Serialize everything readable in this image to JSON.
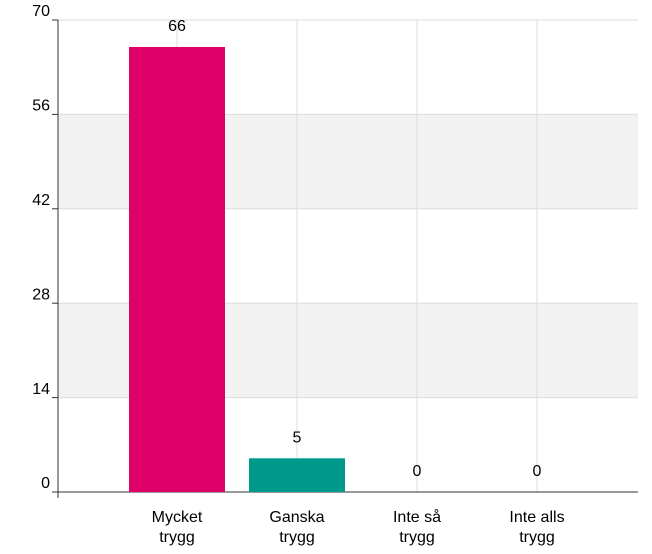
{
  "chart_data": {
    "type": "bar",
    "categories": [
      "Mycket trygg",
      "Ganska trygg",
      "Inte så trygg",
      "Inte alls trygg"
    ],
    "values": [
      66,
      5,
      0,
      0
    ],
    "colors": [
      "#e0006a",
      "#00998c",
      "#00998c",
      "#00998c"
    ],
    "ylim": [
      0,
      70
    ],
    "yticks": [
      0,
      14,
      28,
      42,
      56,
      70
    ],
    "grid": true
  }
}
